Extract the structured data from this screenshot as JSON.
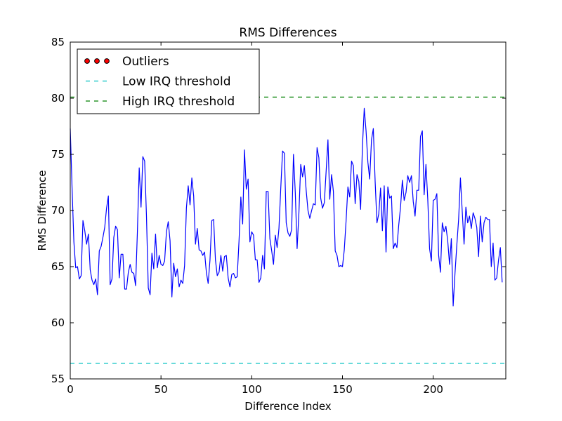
{
  "chart_data": {
    "type": "line",
    "title": "RMS Differences",
    "xlabel": "Difference Index",
    "ylabel": "RMS Difference",
    "xlim": [
      0,
      240
    ],
    "ylim": [
      55,
      85
    ],
    "x_ticks": [
      0,
      50,
      100,
      150,
      200
    ],
    "y_ticks": [
      55,
      60,
      65,
      70,
      75,
      80,
      85
    ],
    "grid": false,
    "legend_position": "top-left",
    "legend": [
      {
        "label": "Outliers",
        "kind": "markers",
        "color": "#ff0000"
      },
      {
        "label": "Low IRQ threshold",
        "kind": "dashed",
        "color": "#00bfbf"
      },
      {
        "label": "High IRQ threshold",
        "kind": "dashed",
        "color": "#008000"
      }
    ],
    "thresholds": {
      "low": {
        "value": 56.4,
        "color": "#00bfbf"
      },
      "high": {
        "value": 80.1,
        "color": "#008000"
      }
    },
    "series": [
      {
        "color": "#0000ff",
        "y": [
          77.3,
          72.0,
          67.2,
          64.9,
          65.0,
          63.9,
          64.2,
          69.1,
          68.2,
          67.0,
          67.9,
          64.7,
          63.8,
          63.4,
          63.9,
          62.5,
          66.4,
          66.8,
          67.6,
          68.5,
          70.2,
          71.3,
          63.4,
          63.9,
          67.6,
          68.6,
          68.3,
          64.0,
          66.1,
          66.1,
          63.0,
          63.0,
          64.5,
          65.2,
          64.5,
          64.4,
          63.3,
          68.1,
          73.8,
          70.3,
          74.8,
          74.4,
          69.5,
          63.1,
          62.5,
          66.2,
          64.8,
          67.9,
          64.9,
          66.0,
          65.2,
          65.1,
          65.5,
          68.1,
          69.0,
          67.3,
          62.3,
          65.3,
          64.1,
          64.8,
          63.2,
          63.8,
          63.5,
          65.1,
          70.2,
          72.2,
          70.5,
          72.9,
          71.3,
          67.0,
          68.4,
          66.5,
          66.4,
          66.0,
          66.3,
          64.5,
          63.5,
          65.6,
          69.1,
          69.2,
          65.6,
          64.2,
          64.5,
          66.0,
          64.6,
          65.9,
          66.0,
          64.0,
          63.2,
          64.3,
          64.4,
          64.0,
          64.1,
          67.3,
          71.2,
          68.8,
          75.4,
          71.9,
          72.8,
          67.2,
          68.1,
          67.8,
          65.6,
          65.6,
          63.6,
          64.0,
          66.0,
          64.8,
          71.7,
          71.7,
          67.5,
          66.4,
          65.2,
          67.8,
          66.7,
          68.4,
          72.0,
          75.3,
          75.1,
          68.9,
          68.0,
          67.7,
          68.3,
          75.0,
          71.6,
          66.6,
          69.8,
          74.1,
          73.0,
          74.0,
          71.8,
          70.0,
          69.3,
          70.0,
          70.6,
          70.5,
          75.6,
          74.7,
          71.1,
          70.2,
          70.7,
          73.5,
          76.3,
          71.0,
          73.2,
          71.7,
          66.4,
          66.0,
          65.0,
          65.1,
          65.0,
          66.5,
          69.1,
          72.1,
          71.2,
          74.4,
          74.0,
          70.6,
          73.2,
          72.6,
          70.1,
          75.7,
          79.1,
          77.1,
          74.3,
          72.8,
          76.3,
          77.3,
          72.6,
          68.9,
          69.7,
          72.0,
          68.2,
          72.2,
          66.3,
          72.1,
          71.1,
          71.3,
          66.6,
          67.1,
          66.7,
          68.7,
          70.3,
          72.7,
          70.9,
          71.6,
          73.1,
          72.5,
          73.1,
          70.8,
          69.5,
          71.8,
          71.8,
          76.6,
          77.1,
          71.4,
          74.1,
          71.0,
          66.6,
          65.5,
          70.9,
          71.0,
          71.5,
          66.0,
          64.5,
          68.9,
          68.1,
          68.6,
          67.3,
          65.2,
          67.5,
          61.5,
          64.4,
          66.9,
          69.2,
          72.9,
          69.9,
          67.0,
          70.3,
          68.9,
          69.5,
          68.4,
          69.8,
          69.3,
          68.5,
          65.9,
          69.5,
          67.2,
          68.9,
          69.4,
          69.2,
          69.2,
          65.0,
          67.1,
          63.8,
          64.0,
          65.6,
          66.7,
          63.6
        ]
      }
    ]
  }
}
